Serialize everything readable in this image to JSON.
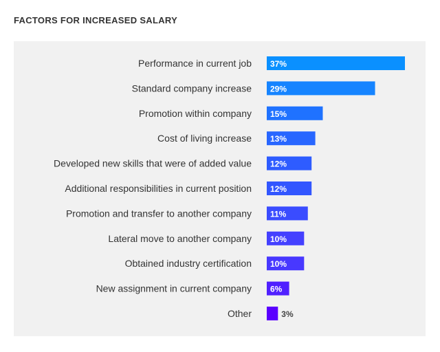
{
  "chart_data": {
    "type": "bar",
    "orientation": "horizontal",
    "title": "FACTORS FOR INCREASED SALARY",
    "categories": [
      "Performance in current job",
      "Standard company increase",
      "Promotion within company",
      "Cost of living increase",
      "Developed new skills that were of added value",
      "Additional responsibilities in current position",
      "Promotion and transfer to another company",
      "Lateral move to another company",
      "Obtained industry certification",
      "New assignment in current company",
      "Other"
    ],
    "values": [
      37,
      29,
      15,
      13,
      12,
      12,
      11,
      10,
      10,
      6,
      3
    ],
    "data_labels": [
      "37%",
      "29%",
      "15%",
      "13%",
      "12%",
      "12%",
      "11%",
      "10%",
      "10%",
      "6%",
      "3%"
    ],
    "unit": "%",
    "colors": [
      "#0a90ff",
      "#1684ff",
      "#1f72ff",
      "#2866ff",
      "#2e5cff",
      "#3256ff",
      "#3a4cff",
      "#4440ff",
      "#4838ff",
      "#5020ff",
      "#5a00ff"
    ],
    "xlim": [
      0,
      37
    ],
    "grid": false,
    "legend": "none"
  }
}
